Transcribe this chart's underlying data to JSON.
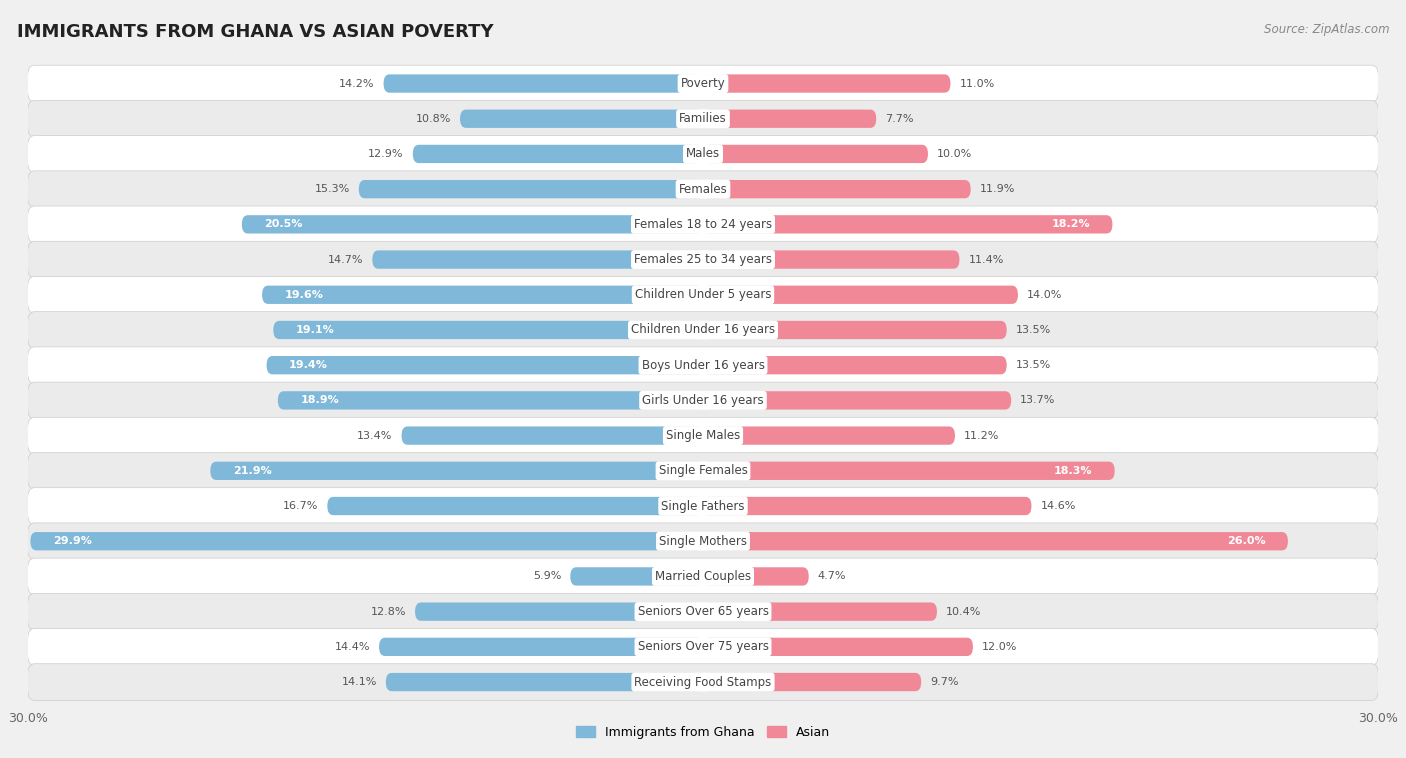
{
  "title": "IMMIGRANTS FROM GHANA VS ASIAN POVERTY",
  "source": "Source: ZipAtlas.com",
  "categories": [
    "Poverty",
    "Families",
    "Males",
    "Females",
    "Females 18 to 24 years",
    "Females 25 to 34 years",
    "Children Under 5 years",
    "Children Under 16 years",
    "Boys Under 16 years",
    "Girls Under 16 years",
    "Single Males",
    "Single Females",
    "Single Fathers",
    "Single Mothers",
    "Married Couples",
    "Seniors Over 65 years",
    "Seniors Over 75 years",
    "Receiving Food Stamps"
  ],
  "ghana_values": [
    14.2,
    10.8,
    12.9,
    15.3,
    20.5,
    14.7,
    19.6,
    19.1,
    19.4,
    18.9,
    13.4,
    21.9,
    16.7,
    29.9,
    5.9,
    12.8,
    14.4,
    14.1
  ],
  "asian_values": [
    11.0,
    7.7,
    10.0,
    11.9,
    18.2,
    11.4,
    14.0,
    13.5,
    13.5,
    13.7,
    11.2,
    18.3,
    14.6,
    26.0,
    4.7,
    10.4,
    12.0,
    9.7
  ],
  "ghana_color": "#7fb8d8",
  "asian_color": "#f08898",
  "row_colors": [
    "#ffffff",
    "#ebebeb"
  ],
  "background_color": "#f0f0f0",
  "xlim": 30.0,
  "bar_height": 0.52,
  "title_fontsize": 13,
  "label_fontsize": 8.5,
  "value_fontsize": 8.0,
  "legend_labels": [
    "Immigrants from Ghana",
    "Asian"
  ],
  "ghana_threshold": 18.0,
  "asian_threshold": 17.0
}
